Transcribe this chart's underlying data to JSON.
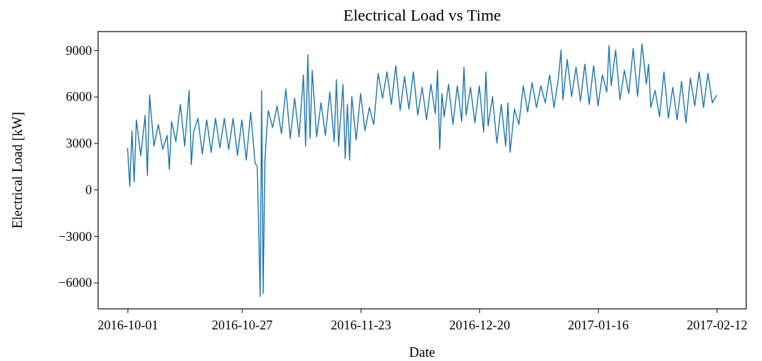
{
  "chart_data": {
    "type": "line",
    "title": "Electrical Load vs Time",
    "xlabel": "Date",
    "ylabel": "Electrical Load [kW]",
    "xlim": [
      "2016-09-24T07:00",
      "2017-02-18T17:00"
    ],
    "xticks": [
      "2016-10-01",
      "2016-10-27",
      "2016-11-23",
      "2016-12-20",
      "2017-01-16",
      "2017-02-12"
    ],
    "ylim": [
      -7700,
      10200
    ],
    "yticks": [
      {
        "value": -6000,
        "label": "−6000"
      },
      {
        "value": -3000,
        "label": "−3000"
      },
      0,
      3000,
      6000,
      9000
    ],
    "series": [
      {
        "color": "#1f77b4",
        "x": [
          "2016-10-01",
          "2016-10-01T12:00",
          "2016-10-02",
          "2016-10-02T12:00",
          "2016-10-03",
          "2016-10-04",
          "2016-10-05",
          "2016-10-05T12:00",
          "2016-10-06",
          "2016-10-07",
          "2016-10-08",
          "2016-10-09",
          "2016-10-10",
          "2016-10-10T12:00",
          "2016-10-11",
          "2016-10-12",
          "2016-10-13",
          "2016-10-14",
          "2016-10-15",
          "2016-10-15T12:00",
          "2016-10-16",
          "2016-10-17",
          "2016-10-18",
          "2016-10-19",
          "2016-10-20",
          "2016-10-21",
          "2016-10-22",
          "2016-10-23",
          "2016-10-24",
          "2016-10-25",
          "2016-10-26",
          "2016-10-27",
          "2016-10-28",
          "2016-10-29",
          "2016-10-30",
          "2016-10-30T12:00",
          "2016-10-31T04:00",
          "2016-10-31T12:00",
          "2016-10-31T20:00",
          "2016-11-01T06:00",
          "2016-11-01T18:00",
          "2016-11-02",
          "2016-11-03",
          "2016-11-04",
          "2016-11-05",
          "2016-11-06",
          "2016-11-07",
          "2016-11-08",
          "2016-11-09",
          "2016-11-10",
          "2016-11-10T12:00",
          "2016-11-11",
          "2016-11-11T12:00",
          "2016-11-12",
          "2016-11-13",
          "2016-11-14",
          "2016-11-15",
          "2016-11-16",
          "2016-11-17",
          "2016-11-17T12:00",
          "2016-11-18",
          "2016-11-19",
          "2016-11-19T12:00",
          "2016-11-20",
          "2016-11-20T12:00",
          "2016-11-21",
          "2016-11-22",
          "2016-11-23",
          "2016-11-24",
          "2016-11-25",
          "2016-11-26",
          "2016-11-27",
          "2016-11-28",
          "2016-11-29",
          "2016-11-30",
          "2016-12-01",
          "2016-12-02",
          "2016-12-03",
          "2016-12-04",
          "2016-12-05",
          "2016-12-06",
          "2016-12-07",
          "2016-12-08",
          "2016-12-09",
          "2016-12-10",
          "2016-12-10T12:00",
          "2016-12-11",
          "2016-12-11T12:00",
          "2016-12-12",
          "2016-12-13",
          "2016-12-14",
          "2016-12-15",
          "2016-12-16",
          "2016-12-16T12:00",
          "2016-12-17",
          "2016-12-18",
          "2016-12-19",
          "2016-12-20",
          "2016-12-21",
          "2016-12-21T12:00",
          "2016-12-22",
          "2016-12-23",
          "2016-12-24",
          "2016-12-25",
          "2016-12-26",
          "2016-12-26T12:00",
          "2016-12-27",
          "2016-12-28",
          "2016-12-29",
          "2016-12-30",
          "2016-12-31",
          "2017-01-01",
          "2017-01-02",
          "2017-01-03",
          "2017-01-04",
          "2017-01-05",
          "2017-01-06",
          "2017-01-07",
          "2017-01-07T14:00",
          "2017-01-08",
          "2017-01-09",
          "2017-01-10",
          "2017-01-11",
          "2017-01-12",
          "2017-01-13",
          "2017-01-14",
          "2017-01-15",
          "2017-01-16",
          "2017-01-17",
          "2017-01-18",
          "2017-01-18T12:00",
          "2017-01-19",
          "2017-01-20",
          "2017-01-21",
          "2017-01-22",
          "2017-01-23",
          "2017-01-24",
          "2017-01-25",
          "2017-01-26",
          "2017-01-27",
          "2017-01-27T12:00",
          "2017-01-28",
          "2017-01-29",
          "2017-01-30",
          "2017-01-31",
          "2017-02-01",
          "2017-02-02",
          "2017-02-03",
          "2017-02-04",
          "2017-02-05",
          "2017-02-06",
          "2017-02-07",
          "2017-02-08",
          "2017-02-09",
          "2017-02-10",
          "2017-02-11",
          "2017-02-12"
        ],
        "values": [
          2700,
          200,
          3800,
          500,
          4500,
          2200,
          4800,
          900,
          6100,
          2800,
          4200,
          2600,
          3500,
          1300,
          4400,
          3100,
          5500,
          2800,
          6400,
          1600,
          3700,
          4600,
          2300,
          4500,
          2400,
          4600,
          2700,
          4600,
          2600,
          4600,
          2200,
          4500,
          1900,
          5000,
          1700,
          1500,
          -6900,
          6400,
          -6700,
          2000,
          4200,
          5100,
          4000,
          5400,
          3600,
          6500,
          3300,
          5900,
          3400,
          7400,
          2800,
          8700,
          3300,
          7700,
          3400,
          5600,
          3500,
          6300,
          3100,
          7100,
          2800,
          6800,
          2000,
          5500,
          1900,
          6000,
          3200,
          6200,
          3800,
          5300,
          4200,
          7500,
          5900,
          7600,
          5500,
          8000,
          5100,
          7300,
          5200,
          7600,
          4800,
          6600,
          4500,
          6800,
          4900,
          7700,
          2600,
          6200,
          4700,
          6800,
          4200,
          6700,
          4400,
          7900,
          4800,
          6600,
          4300,
          6700,
          3700,
          7600,
          4100,
          6000,
          3000,
          5500,
          2800,
          5600,
          2400,
          5200,
          4200,
          6700,
          5000,
          6900,
          5300,
          6700,
          5600,
          7400,
          5300,
          7200,
          9000,
          5800,
          8400,
          6000,
          7900,
          5700,
          8100,
          5500,
          8000,
          5400,
          7400,
          6300,
          9300,
          6700,
          9000,
          5800,
          7700,
          6200,
          9100,
          6000,
          9400,
          6800,
          8100,
          5300,
          6400,
          4700,
          7600,
          4600,
          6600,
          4500,
          7000,
          4300,
          7200,
          5400,
          7600,
          5300,
          7500,
          5600,
          6100
        ]
      }
    ]
  }
}
